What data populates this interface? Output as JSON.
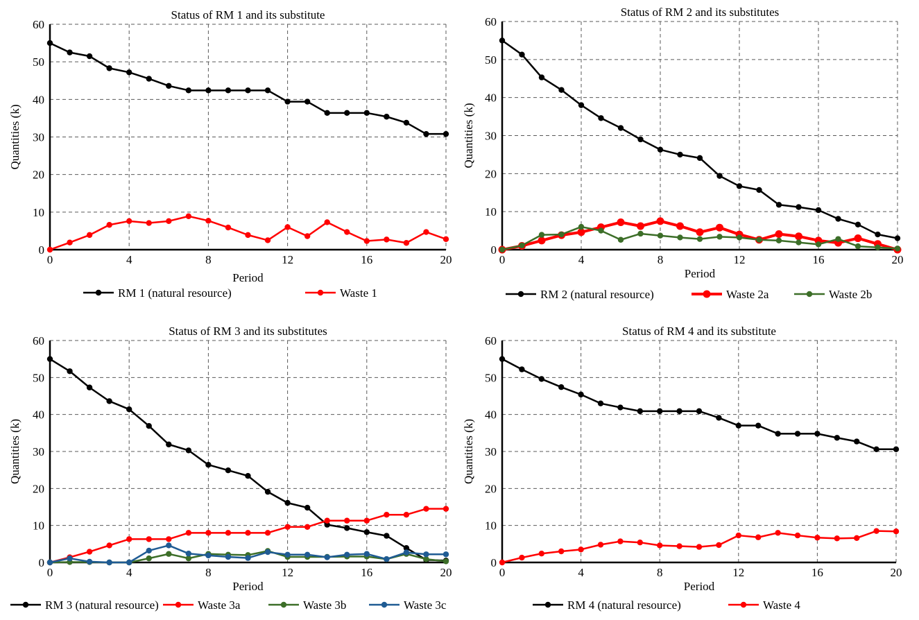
{
  "chart_data": [
    {
      "type": "line",
      "title": "Status of RM 1 and its substitute",
      "xlabel": "Period",
      "ylabel": "Quantities (k)",
      "xlim": [
        0,
        20
      ],
      "ylim": [
        0,
        60
      ],
      "xticks": [
        0,
        4,
        8,
        12,
        16,
        20
      ],
      "yticks": [
        0,
        10,
        20,
        30,
        40,
        50,
        60
      ],
      "x": [
        0,
        1,
        2,
        3,
        4,
        5,
        6,
        7,
        8,
        9,
        10,
        11,
        12,
        13,
        14,
        15,
        16,
        17,
        18,
        19,
        20
      ],
      "series": [
        {
          "name": "RM 1 (natural resource)",
          "color": "#000000",
          "values": [
            55,
            52.5,
            51.5,
            48.3,
            47.2,
            45.5,
            43.6,
            42.4,
            42.4,
            42.4,
            42.4,
            42.4,
            39.4,
            39.4,
            36.4,
            36.4,
            36.4,
            35.4,
            33.8,
            30.8,
            30.8
          ]
        },
        {
          "name": "Waste 1",
          "color": "#ff0000",
          "values": [
            0,
            1.9,
            3.9,
            6.6,
            7.6,
            7.1,
            7.6,
            8.9,
            7.7,
            5.9,
            3.9,
            2.5,
            6.0,
            3.6,
            7.3,
            4.7,
            2.3,
            2.7,
            1.8,
            4.7,
            2.8
          ]
        }
      ]
    },
    {
      "type": "line",
      "title": "Status of RM 2 and its substitutes",
      "xlabel": "Period",
      "ylabel": "Quantities (k)",
      "xlim": [
        0,
        20
      ],
      "ylim": [
        0,
        60
      ],
      "xticks": [
        0,
        4,
        8,
        12,
        16,
        20
      ],
      "yticks": [
        0,
        10,
        20,
        30,
        40,
        50,
        60
      ],
      "x": [
        0,
        1,
        2,
        3,
        4,
        5,
        6,
        7,
        8,
        9,
        10,
        11,
        12,
        13,
        14,
        15,
        16,
        17,
        18,
        19,
        20
      ],
      "series": [
        {
          "name": "RM 2 (natural resource)",
          "color": "#000000",
          "values": [
            55,
            51.3,
            45.3,
            42.0,
            38.0,
            34.6,
            32.0,
            29.0,
            26.3,
            25.0,
            24.1,
            19.4,
            16.7,
            15.7,
            11.8,
            11.2,
            10.4,
            8.1,
            6.6,
            4.0,
            3.0
          ]
        },
        {
          "name": "Waste 2a",
          "color": "#ff0000",
          "values": [
            0,
            1.0,
            2.4,
            3.8,
            4.6,
            5.9,
            7.2,
            6.2,
            7.5,
            6.2,
            4.6,
            5.8,
            4.0,
            2.6,
            4.1,
            3.5,
            2.4,
            1.8,
            3.0,
            1.5,
            0
          ]
        },
        {
          "name": "Waste 2b",
          "color": "#3c6e28",
          "values": [
            0,
            1.1,
            3.9,
            4.0,
            6.0,
            5.0,
            2.6,
            4.2,
            3.7,
            3.2,
            2.8,
            3.4,
            3.2,
            2.6,
            2.4,
            1.9,
            1.4,
            2.8,
            0.9,
            0.6,
            0.3
          ]
        }
      ]
    },
    {
      "type": "line",
      "title": "Status of RM 3 and its substitutes",
      "xlabel": "Period",
      "ylabel": "Quantities (k)",
      "xlim": [
        0,
        20
      ],
      "ylim": [
        0,
        60
      ],
      "xticks": [
        0,
        4,
        8,
        12,
        16,
        20
      ],
      "yticks": [
        0,
        10,
        20,
        30,
        40,
        50,
        60
      ],
      "x": [
        0,
        1,
        2,
        3,
        4,
        5,
        6,
        7,
        8,
        9,
        10,
        11,
        12,
        13,
        14,
        15,
        16,
        17,
        18,
        19,
        20
      ],
      "series": [
        {
          "name": "RM 3 (natural resource)",
          "color": "#000000",
          "values": [
            55,
            51.7,
            47.3,
            43.6,
            41.4,
            36.9,
            31.9,
            30.3,
            26.4,
            24.9,
            23.4,
            19.1,
            16.1,
            14.8,
            10.2,
            9.3,
            8.2,
            7.2,
            3.9,
            0.7,
            0.5
          ]
        },
        {
          "name": "Waste 3a",
          "color": "#ff0000",
          "values": [
            0,
            1.4,
            2.9,
            4.6,
            6.3,
            6.3,
            6.3,
            8.0,
            8.0,
            8.0,
            8.0,
            8.0,
            9.6,
            9.6,
            11.3,
            11.3,
            11.3,
            12.9,
            12.9,
            14.5,
            14.5
          ]
        },
        {
          "name": "Waste 3b",
          "color": "#3c6e28",
          "values": [
            0,
            0.1,
            0.1,
            0,
            0,
            1.1,
            2.3,
            1.1,
            2.3,
            2.1,
            2.0,
            3.1,
            1.5,
            1.5,
            1.5,
            1.6,
            1.6,
            0.9,
            2.3,
            0.9,
            0.3
          ]
        },
        {
          "name": "Waste 3c",
          "color": "#1f5b93",
          "values": [
            0,
            1.1,
            0.2,
            0,
            0,
            3.2,
            4.6,
            2.4,
            1.9,
            1.5,
            1.2,
            2.8,
            2.1,
            2.1,
            1.4,
            2.1,
            2.3,
            0.9,
            2.7,
            2.2,
            2.2
          ]
        }
      ]
    },
    {
      "type": "line",
      "title": "Status of RM 4 and its substitute",
      "xlabel": "Period",
      "ylabel": "Quantities (k)",
      "xlim": [
        0,
        20
      ],
      "ylim": [
        0,
        60
      ],
      "xticks": [
        0,
        4,
        8,
        12,
        16,
        20
      ],
      "yticks": [
        0,
        10,
        20,
        30,
        40,
        50,
        60
      ],
      "x": [
        0,
        1,
        2,
        3,
        4,
        5,
        6,
        7,
        8,
        9,
        10,
        11,
        12,
        13,
        14,
        15,
        16,
        17,
        18,
        19,
        20
      ],
      "series": [
        {
          "name": "RM 4 (natural resource)",
          "color": "#000000",
          "values": [
            55,
            52.2,
            49.6,
            47.4,
            45.4,
            43.0,
            41.9,
            40.9,
            40.9,
            40.9,
            40.9,
            39.1,
            37.0,
            37.0,
            34.8,
            34.8,
            34.8,
            33.7,
            32.7,
            30.6,
            30.6
          ]
        },
        {
          "name": "Waste 4",
          "color": "#ff0000",
          "values": [
            0,
            1.3,
            2.4,
            3.0,
            3.5,
            4.8,
            5.7,
            5.4,
            4.6,
            4.4,
            4.2,
            4.7,
            7.3,
            6.8,
            8.0,
            7.3,
            6.7,
            6.5,
            6.6,
            8.5,
            8.4
          ]
        }
      ]
    }
  ]
}
